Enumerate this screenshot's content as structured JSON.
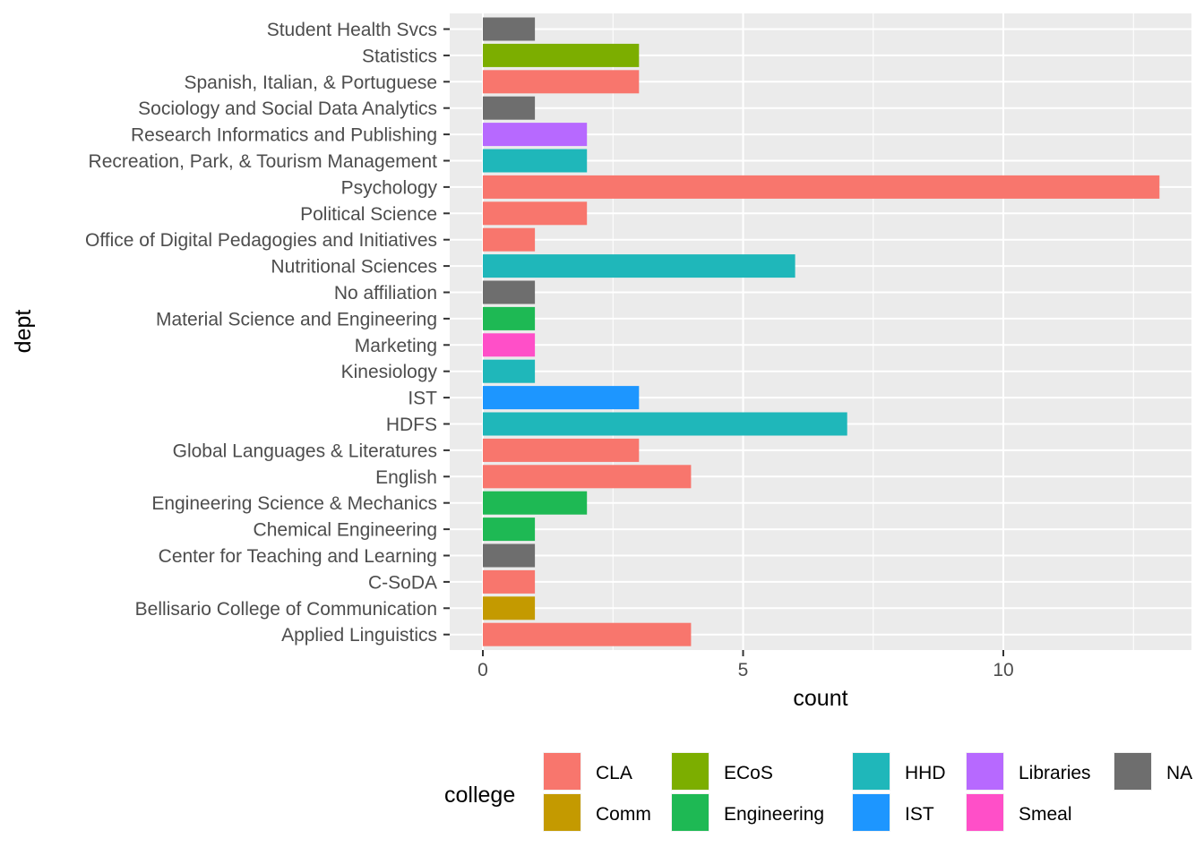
{
  "chart_data": {
    "type": "bar",
    "orientation": "horizontal",
    "xlabel": "count",
    "ylabel": "dept",
    "xlim": [
      0,
      13
    ],
    "x_ticks": [
      0,
      5,
      10
    ],
    "grid": true,
    "legend_position": "bottom",
    "legend_title": "college",
    "categories": [
      "Applied Linguistics",
      "Bellisario College of Communication",
      "C-SoDA",
      "Center for Teaching and Learning",
      "Chemical Engineering",
      "Engineering Science & Mechanics",
      "English",
      "Global Languages & Literatures",
      "HDFS",
      "IST",
      "Kinesiology",
      "Marketing",
      "Material Science and Engineering",
      "No affiliation",
      "Nutritional Sciences",
      "Office of Digital Pedagogies and Initiatives",
      "Political Science",
      "Psychology",
      "Recreation, Park, & Tourism Management",
      "Research Informatics and Publishing",
      "Sociology and Social Data Analytics",
      "Spanish, Italian, & Portuguese",
      "Statistics",
      "Student Health Svcs"
    ],
    "values": [
      4,
      1,
      1,
      1,
      1,
      2,
      4,
      3,
      7,
      3,
      1,
      1,
      1,
      1,
      6,
      1,
      2,
      13,
      2,
      2,
      1,
      3,
      3,
      1
    ],
    "bar_college": [
      "CLA",
      "Comm",
      "CLA",
      "NA",
      "Engineering",
      "Engineering",
      "CLA",
      "CLA",
      "HHD",
      "IST",
      "HHD",
      "Smeal",
      "Engineering",
      "NA",
      "HHD",
      "CLA",
      "CLA",
      "CLA",
      "HHD",
      "Libraries",
      "NA",
      "CLA",
      "ECoS",
      "NA"
    ],
    "legend": [
      {
        "name": "CLA",
        "color": "#F8766D"
      },
      {
        "name": "Comm",
        "color": "#C49A00"
      },
      {
        "name": "ECoS",
        "color": "#7CAE00"
      },
      {
        "name": "Engineering",
        "color": "#1EB954"
      },
      {
        "name": "HHD",
        "color": "#1FB7BA"
      },
      {
        "name": "IST",
        "color": "#1D96FF"
      },
      {
        "name": "Libraries",
        "color": "#B769FF"
      },
      {
        "name": "Smeal",
        "color": "#FF4FC8"
      },
      {
        "name": "NA",
        "color": "#6E6E6E"
      }
    ],
    "panel_background": "#EBEBEB",
    "grid_color": "#FFFFFF"
  }
}
